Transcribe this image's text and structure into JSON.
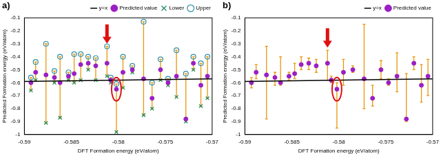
{
  "chart_data": [
    {
      "type": "scatter",
      "title": "a)",
      "x_label": "DFT Formation energy (eV/atom)",
      "y_label": "Predicted Formation energy (eV/atom)",
      "x": [
        -0.5893,
        -0.5888,
        -0.5877,
        -0.5868,
        -0.5862,
        -0.5853,
        -0.5847,
        -0.584,
        -0.5832,
        -0.5824,
        -0.5812,
        -0.5808,
        -0.5802,
        -0.5795,
        -0.5785,
        -0.5773,
        -0.5764,
        -0.5755,
        -0.5747,
        -0.5738,
        -0.5728,
        -0.572,
        -0.5712,
        -0.5705
      ],
      "xlim": [
        -0.59,
        -0.57
      ],
      "xticks": [
        -0.59,
        -0.585,
        -0.58,
        -0.575,
        -0.57
      ],
      "ylim": [
        -1,
        -0.1
      ],
      "yticks": [
        -1,
        -0.9,
        -0.8,
        -0.7,
        -0.6,
        -0.5,
        -0.4,
        -0.3,
        -0.2,
        -0.1
      ],
      "grid": false,
      "legend": "top-right",
      "series": [
        {
          "name": "Predicted value",
          "marker": "circle",
          "color": "#9b1fc2",
          "values": [
            -0.6,
            -0.52,
            -0.54,
            -0.56,
            -0.6,
            -0.55,
            -0.53,
            -0.46,
            -0.45,
            -0.47,
            -0.45,
            -0.58,
            -0.65,
            -0.52,
            -0.5,
            -0.57,
            -0.72,
            -0.5,
            -0.6,
            -0.55,
            -0.88,
            -0.45,
            -0.62,
            -0.55
          ],
          "error_low": [
            -0.66,
            -0.58,
            -0.91,
            -0.6,
            -0.87,
            -0.58,
            -0.6,
            -0.58,
            -0.5,
            -0.58,
            -0.55,
            -0.6,
            -0.98,
            -0.64,
            -0.52,
            -0.85,
            -0.8,
            -0.58,
            -0.62,
            -0.71,
            -0.9,
            -0.5,
            -0.78,
            -0.72
          ],
          "error_high": [
            -0.56,
            -0.44,
            -0.3,
            -0.51,
            -0.4,
            -0.52,
            -0.38,
            -0.38,
            -0.4,
            -0.41,
            -0.32,
            -0.56,
            -0.61,
            -0.4,
            -0.47,
            -0.13,
            -0.6,
            -0.42,
            -0.57,
            -0.35,
            -0.53,
            -0.4,
            -0.45,
            -0.4
          ]
        },
        {
          "name": "Lower",
          "marker": "x",
          "color": "#1f8a5a",
          "values": [
            -0.66,
            -0.58,
            -0.91,
            -0.6,
            -0.87,
            -0.58,
            -0.6,
            -0.58,
            -0.5,
            -0.58,
            -0.55,
            -0.6,
            -0.98,
            -0.64,
            -0.52,
            -0.85,
            -0.8,
            -0.58,
            -0.62,
            -0.71,
            -0.9,
            -0.5,
            -0.78,
            -0.72
          ]
        },
        {
          "name": "Upper",
          "marker": "open_circle",
          "color": "#2f8fa8",
          "values": [
            -0.56,
            -0.44,
            -0.3,
            -0.51,
            -0.4,
            -0.52,
            -0.38,
            -0.38,
            -0.4,
            -0.41,
            -0.32,
            -0.56,
            -0.61,
            -0.4,
            -0.47,
            -0.13,
            -0.6,
            -0.42,
            -0.57,
            -0.35,
            -0.53,
            -0.4,
            -0.45,
            -0.4
          ]
        },
        {
          "name": "y=x",
          "type": "line",
          "line_style": "solid",
          "color": "#000000",
          "x": [
            -0.59,
            -0.57
          ],
          "values": [
            -0.59,
            -0.57
          ]
        }
      ]
    },
    {
      "type": "scatter",
      "title": "b)",
      "x_label": "DFT Formation energy (eV/atom)",
      "y_label": "Predicted Formation energy (eV/atom)",
      "x": [
        -0.5893,
        -0.5888,
        -0.5877,
        -0.5868,
        -0.5862,
        -0.5853,
        -0.5847,
        -0.584,
        -0.5832,
        -0.5824,
        -0.5812,
        -0.5808,
        -0.5802,
        -0.5795,
        -0.5785,
        -0.5773,
        -0.5764,
        -0.5755,
        -0.5747,
        -0.5738,
        -0.5728,
        -0.572,
        -0.5712,
        -0.5705
      ],
      "xlim": [
        -0.59,
        -0.57
      ],
      "xticks": [
        -0.59,
        -0.585,
        -0.58,
        -0.575,
        -0.57
      ],
      "ylim": [
        -1,
        -0.1
      ],
      "yticks": [
        -1,
        -0.9,
        -0.8,
        -0.7,
        -0.6,
        -0.5,
        -0.4,
        -0.3,
        -0.2,
        -0.1
      ],
      "grid": false,
      "legend": "top-right",
      "series": [
        {
          "name": "Predicted value",
          "marker": "circle",
          "color": "#9b1fc2",
          "values": [
            -0.6,
            -0.52,
            -0.54,
            -0.56,
            -0.6,
            -0.55,
            -0.53,
            -0.46,
            -0.45,
            -0.47,
            -0.45,
            -0.58,
            -0.65,
            -0.52,
            -0.5,
            -0.57,
            -0.72,
            -0.5,
            -0.6,
            -0.55,
            -0.88,
            -0.45,
            -0.62,
            -0.55
          ],
          "error_low": [
            -0.64,
            -0.57,
            -0.88,
            -0.62,
            -0.62,
            -0.58,
            -0.57,
            -0.5,
            -0.5,
            -0.52,
            -0.58,
            -0.6,
            -0.95,
            -0.62,
            -0.52,
            -0.8,
            -0.78,
            -0.57,
            -0.62,
            -0.67,
            -0.9,
            -0.5,
            -0.75,
            -0.7
          ],
          "error_high": [
            -0.56,
            -0.46,
            -0.32,
            -0.52,
            -0.4,
            -0.52,
            -0.45,
            -0.4,
            -0.41,
            -0.42,
            -0.35,
            -0.55,
            -0.6,
            -0.42,
            -0.47,
            -0.15,
            -0.62,
            -0.43,
            -0.57,
            -0.37,
            -0.53,
            -0.4,
            -0.46,
            -0.42
          ]
        },
        {
          "name": "y=x",
          "type": "line",
          "line_style": "solid",
          "color": "#000000",
          "x": [
            -0.59,
            -0.57
          ],
          "values": [
            -0.59,
            -0.57
          ]
        }
      ]
    }
  ]
}
